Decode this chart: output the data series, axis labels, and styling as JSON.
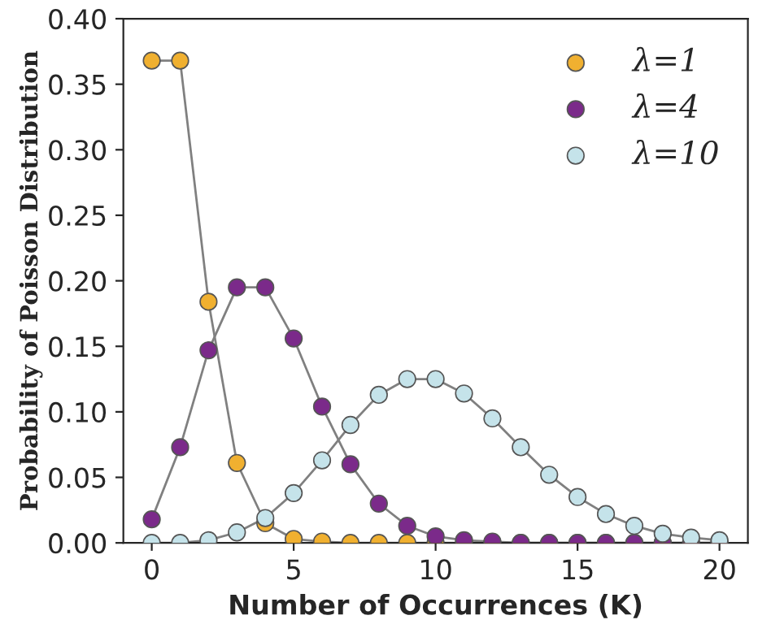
{
  "chart_data": {
    "type": "line",
    "xlabel": "Number of Occurrences (K)",
    "ylabel": "Probability of Poisson Distribution",
    "x": [
      0,
      1,
      2,
      3,
      4,
      5,
      6,
      7,
      8,
      9,
      10,
      11,
      12,
      13,
      14,
      15,
      16,
      17,
      18,
      19,
      20
    ],
    "series": [
      {
        "name": "λ=1",
        "color": "#f0b030",
        "values": [
          0.368,
          0.368,
          0.184,
          0.061,
          0.015,
          0.003,
          0.001,
          0.0,
          0.0,
          0.0,
          0.0,
          0.0,
          0.0,
          0.0,
          0.0,
          0.0,
          0.0,
          0.0,
          0.0,
          0.0,
          0.0
        ]
      },
      {
        "name": "λ=4",
        "color": "#7b2a8a",
        "values": [
          0.018,
          0.073,
          0.147,
          0.195,
          0.195,
          0.156,
          0.104,
          0.06,
          0.03,
          0.013,
          0.005,
          0.002,
          0.001,
          0.0,
          0.0,
          0.0,
          0.0,
          0.0,
          0.0,
          0.0,
          0.0
        ]
      },
      {
        "name": "λ=10",
        "color": "#c5e3ea",
        "values": [
          0.0,
          0.0,
          0.002,
          0.008,
          0.019,
          0.038,
          0.063,
          0.09,
          0.113,
          0.125,
          0.125,
          0.114,
          0.095,
          0.073,
          0.052,
          0.035,
          0.022,
          0.013,
          0.007,
          0.004,
          0.002
        ]
      }
    ],
    "xlim": [
      -1,
      21
    ],
    "xticks": [
      0,
      5,
      10,
      15,
      20
    ],
    "ylim": [
      0,
      0.4
    ],
    "yticks": [
      {
        "value": 0,
        "label": "0.00"
      },
      {
        "value": 0.05,
        "label": "0.05"
      },
      {
        "value": 0.1,
        "label": "0.10"
      },
      {
        "value": 0.15,
        "label": "0.15"
      },
      {
        "value": 0.2,
        "label": "0.20"
      },
      {
        "value": 0.25,
        "label": "0.25"
      },
      {
        "value": 0.3,
        "label": "0.30"
      },
      {
        "value": 0.35,
        "label": "0.35"
      },
      {
        "value": 0.4,
        "label": "0.40"
      }
    ],
    "legend": "top right",
    "marker": "circle",
    "line_style": "solid",
    "grid": false
  }
}
